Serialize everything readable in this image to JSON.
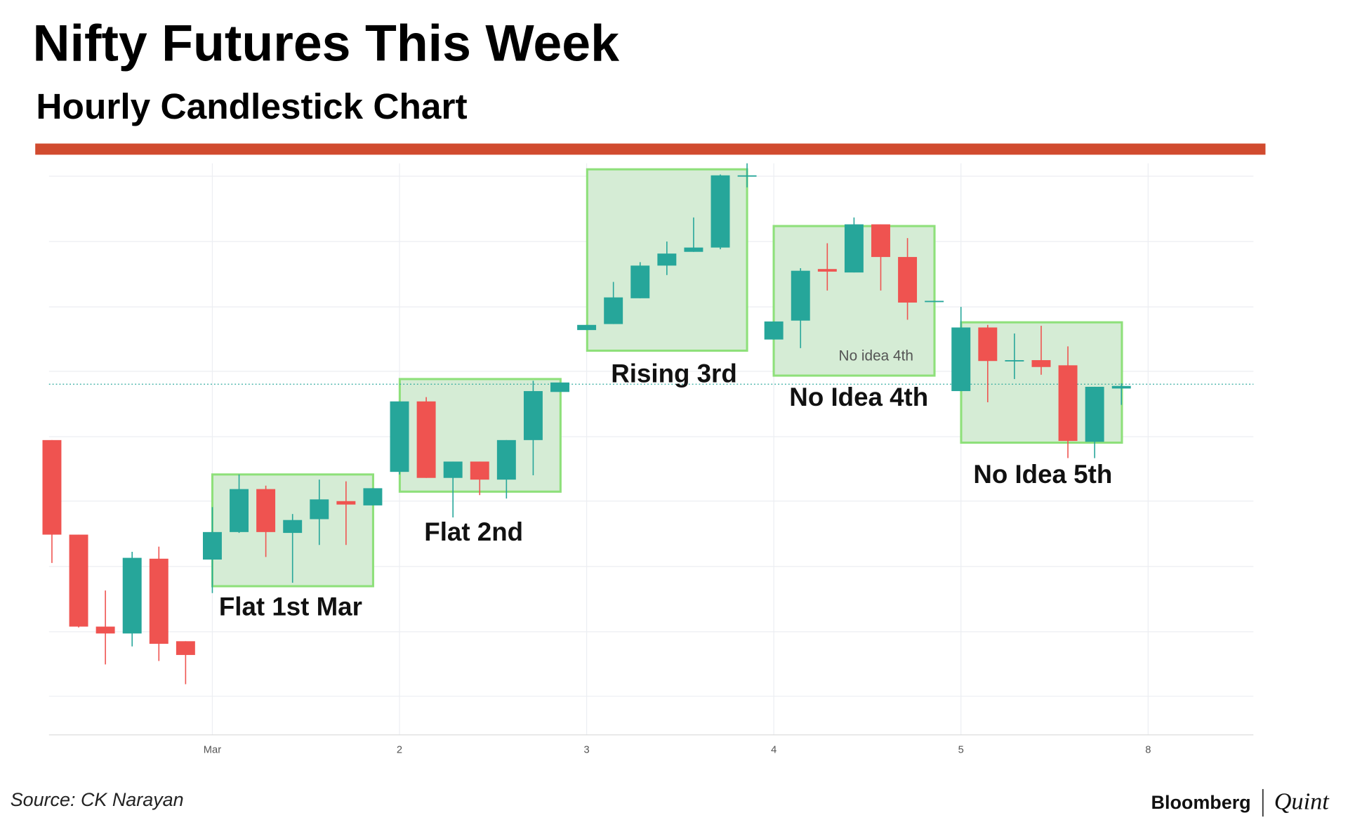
{
  "title": "Nifty Futures This Week",
  "subtitle": "Hourly Candlestick Chart",
  "source": "Source: CK Narayan",
  "brand": [
    "Bloomberg",
    "Quint"
  ],
  "chart_data": {
    "type": "candlestick",
    "open": [
      343,
      233,
      126,
      118,
      205,
      109,
      204,
      236,
      286,
      235,
      251,
      272,
      267,
      306,
      388,
      299,
      318,
      297,
      343,
      399,
      471,
      478,
      508,
      546,
      562,
      567,
      650,
      460,
      482,
      542,
      538,
      594,
      556,
      504,
      400,
      474,
      435,
      436,
      430,
      341,
      403
    ],
    "high": [
      343,
      233,
      168,
      213,
      219,
      109,
      265,
      303,
      290,
      257,
      297,
      295,
      287,
      388,
      393,
      318,
      318,
      343,
      412,
      410,
      477,
      527,
      550,
      574,
      602,
      652,
      665,
      481,
      543,
      572,
      602,
      594,
      578,
      505,
      498,
      477,
      467,
      476,
      452,
      405,
      409
    ],
    "low": [
      200,
      125,
      82,
      103,
      86,
      59,
      165,
      235,
      207,
      177,
      221,
      221,
      267,
      303,
      299,
      253,
      279,
      275,
      302,
      399,
      471,
      478,
      508,
      535,
      562,
      565,
      637,
      460,
      450,
      517,
      538,
      517,
      483,
      504,
      400,
      387,
      414,
      419,
      322,
      322,
      384
    ],
    "close": [
      233,
      126,
      118,
      206,
      106,
      93,
      236,
      286,
      236,
      250,
      274,
      268,
      287,
      388,
      299,
      318,
      297,
      343,
      400,
      410,
      477,
      509,
      546,
      560,
      567,
      651,
      651,
      481,
      540,
      539,
      594,
      556,
      503,
      505,
      474,
      435,
      436,
      428,
      342,
      405,
      406
    ],
    "up_color": "#26a69a",
    "down_color": "#ef5350",
    "ylim": [
      0,
      665
    ],
    "ygrid": [
      650,
      574,
      498,
      423,
      347,
      272,
      196,
      120,
      45
    ],
    "xticks": [
      {
        "value": 6,
        "label": "Mar"
      },
      {
        "value": 13,
        "label": "2"
      },
      {
        "value": 20,
        "label": "3"
      },
      {
        "value": 27,
        "label": "4"
      },
      {
        "value": 34,
        "label": "5"
      },
      {
        "value": 41,
        "label": "8"
      }
    ],
    "price_line": 408,
    "annotations": [
      {
        "text": "Flat 1st Mar"
      },
      {
        "text": "Flat 2nd"
      },
      {
        "text": "Rising 3rd"
      },
      {
        "text": "No Idea 4th"
      },
      {
        "text": "No idea 4th"
      },
      {
        "text": "No Idea 5th"
      }
    ]
  }
}
